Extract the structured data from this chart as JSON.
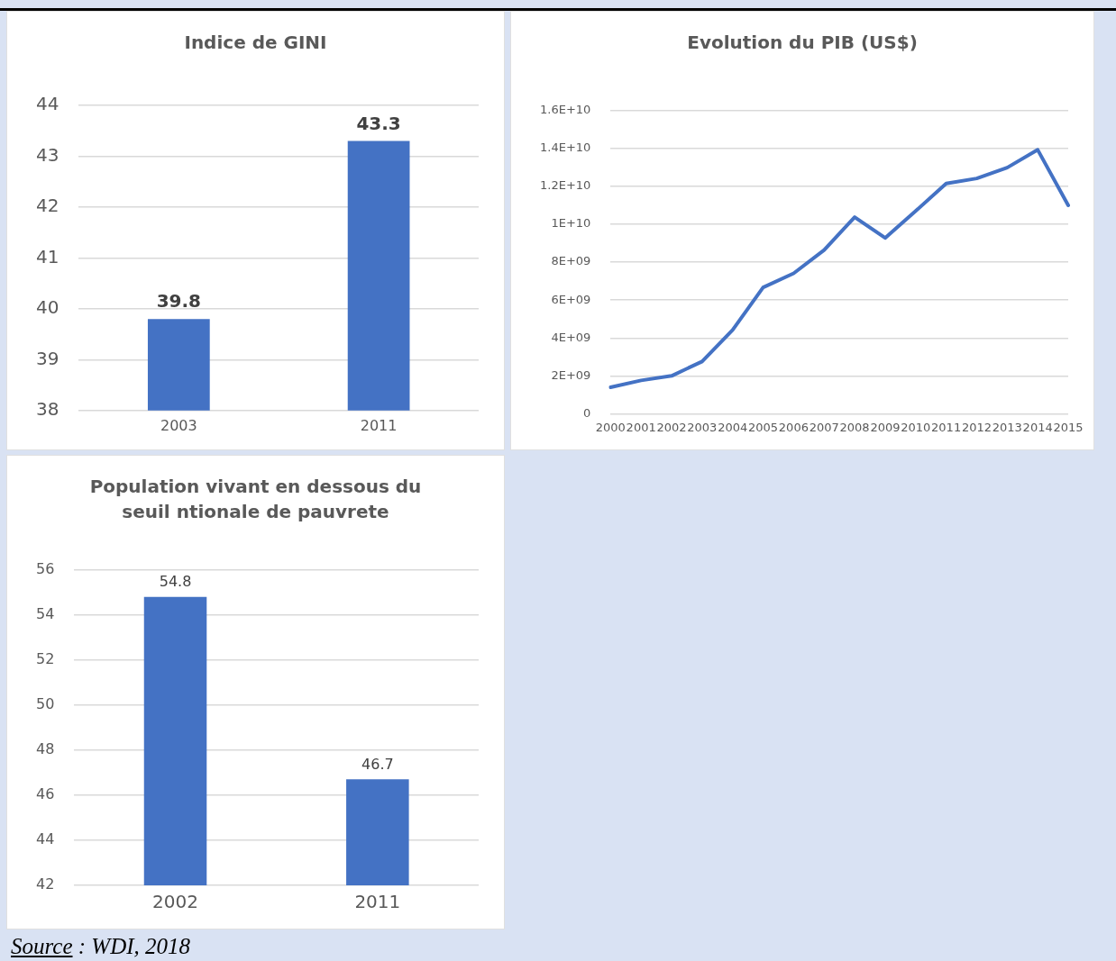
{
  "chart_data": [
    {
      "type": "bar",
      "title": "Indice de GINI",
      "categories": [
        "2003",
        "2011"
      ],
      "values": [
        39.8,
        43.3
      ],
      "color": "#4472c4",
      "ylim": [
        38,
        44
      ],
      "yticks": [
        38,
        39,
        40,
        41,
        42,
        43,
        44
      ],
      "grid": "y",
      "legend": false,
      "data_labels": true
    },
    {
      "type": "line",
      "title": "Evolution du PIB (US$)",
      "categories": [
        "2000",
        "2001",
        "2002",
        "2003",
        "2004",
        "2005",
        "2006",
        "2007",
        "2008",
        "2009",
        "2010",
        "2011",
        "2012",
        "2013",
        "2014",
        "2015"
      ],
      "values": [
        1400000000.0,
        1760000000.0,
        2000000000.0,
        2760000000.0,
        4420000000.0,
        6670000000.0,
        7410000000.0,
        8640000000.0,
        10380000000.0,
        9280000000.0,
        10700000000.0,
        12150000000.0,
        12420000000.0,
        12990000000.0,
        13930000000.0,
        11000000000.0
      ],
      "color": "#4472c4",
      "ylim": [
        0,
        16000000000
      ],
      "yticks": [
        0,
        {
          "value": 2000000000,
          "label": "2E+09"
        },
        {
          "value": 4000000000,
          "label": "4E+09"
        },
        {
          "value": 6000000000,
          "label": "6E+09"
        },
        {
          "value": 8000000000,
          "label": "8E+09"
        },
        {
          "value": 10000000000,
          "label": "1E+10"
        },
        {
          "value": 12000000000,
          "label": "1.2E+10"
        },
        {
          "value": 14000000000,
          "label": "1.4E+10"
        },
        {
          "value": 16000000000,
          "label": "1.6E+10"
        }
      ],
      "grid": "y",
      "legend": false,
      "marker": "none",
      "line_style": "solid"
    },
    {
      "type": "bar",
      "title": "Population vivant en dessous du seuil ntionale de pauvrete",
      "categories": [
        "2002",
        "2011"
      ],
      "values": [
        54.8,
        46.7
      ],
      "color": "#4472c4",
      "ylim": [
        42,
        56
      ],
      "yticks": [
        42,
        44,
        46,
        48,
        50,
        52,
        54,
        56
      ],
      "grid": "y",
      "legend": false,
      "data_labels": true,
      "annotations": [
        "Source :  WDI, 2018"
      ]
    }
  ]
}
